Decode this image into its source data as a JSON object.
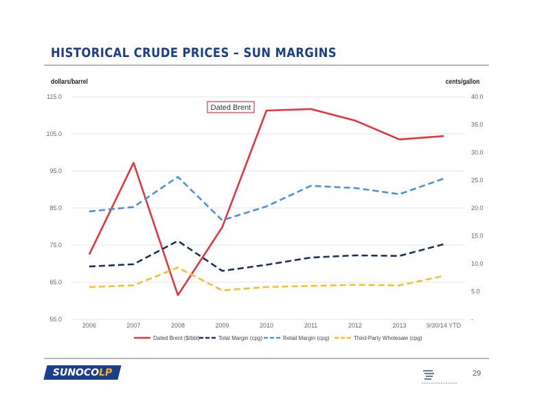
{
  "page": {
    "title": "HISTORICAL CRUDE PRICES – SUN MARGINS",
    "page_number": "29",
    "logo": {
      "brand": "SUNOCO",
      "suffix": "LP"
    }
  },
  "colors": {
    "title": "#1b3f8b",
    "dated_brent": "#e8323a",
    "total_margin": "#16305f",
    "retail_margin": "#4a90e2",
    "third_party": "#f5c028",
    "grid": "#e3e3e3",
    "logo_bg": "#1b3f8b",
    "logo_accent": "#f5b41a"
  },
  "chart_data": {
    "type": "line",
    "categories": [
      "2006",
      "2007",
      "2008",
      "2009",
      "2010",
      "2011",
      "2012",
      "2013",
      "9/30/14 YTD"
    ],
    "left_axis": {
      "label": "dollars/barrel",
      "ylim": [
        55,
        115
      ],
      "ticks": [
        "55.0",
        "65.0",
        "75.0",
        "85.0",
        "95.0",
        "105.0",
        "115.0"
      ]
    },
    "right_axis": {
      "label": "cents/gallon",
      "ylim": [
        0,
        40
      ],
      "ticks": [
        "-",
        "5.0",
        "10.0",
        "15.0",
        "20.0",
        "25.0",
        "30.0",
        "35.0",
        "40.0"
      ]
    },
    "grid": true,
    "legend_position": "bottom",
    "annotation": "Dated Brent",
    "series": [
      {
        "key": "dated_brent",
        "name": "Dated Brent ($/bbl)",
        "axis": "left",
        "dashed": false,
        "values": [
          72.5,
          97.2,
          61.5,
          79.8,
          111.3,
          111.7,
          108.6,
          103.5,
          104.4
        ]
      },
      {
        "key": "total_margin",
        "name": "Total Margin (cpg)",
        "axis": "right",
        "dashed": true,
        "values": [
          9.5,
          9.9,
          14.1,
          8.7,
          9.8,
          11.1,
          11.5,
          11.4,
          13.5
        ]
      },
      {
        "key": "retail_margin",
        "name": "Retail Margin (cpg)",
        "axis": "right",
        "dashed": true,
        "values": [
          19.4,
          20.2,
          25.6,
          17.8,
          20.3,
          24.0,
          23.6,
          22.5,
          25.3
        ]
      },
      {
        "key": "third_party",
        "name": "Third-Party Wholesale (cpg)",
        "axis": "right",
        "dashed": true,
        "values": [
          5.8,
          6.1,
          9.3,
          5.2,
          5.8,
          6.0,
          6.2,
          6.1,
          7.8
        ]
      }
    ]
  }
}
